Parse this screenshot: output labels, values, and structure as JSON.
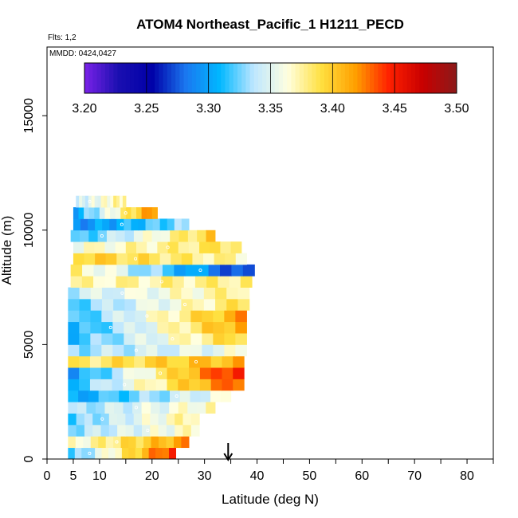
{
  "chart_data": {
    "type": "heatmap",
    "title": "ATOM4 Northeast_Pacific_1 H1211_PECD",
    "flights_label": "Flts: 1,2",
    "mmdd_label": "MMDD: 0424,0427",
    "xlabel": "Latitude (deg N)",
    "ylabel": "Altitude (m)",
    "xlim": [
      0,
      85
    ],
    "ylim": [
      0,
      18000
    ],
    "x_ticks": [
      0,
      5,
      10,
      20,
      30,
      40,
      50,
      60,
      70,
      80
    ],
    "x_minor_ticks": [
      15,
      25,
      35,
      45,
      55,
      65,
      75,
      85
    ],
    "y_ticks": [
      0,
      5000,
      10000,
      15000
    ],
    "colorbar": {
      "ticks": [
        "3.20",
        "3.25",
        "3.30",
        "3.35",
        "3.40",
        "3.45",
        "3.50"
      ],
      "range": [
        3.2,
        3.5
      ],
      "colors": [
        "#7b22e8",
        "#1a0fb0",
        "#0000a8",
        "#1a78f0",
        "#00b8ff",
        "#bde6ff",
        "#ffffe0",
        "#ffe040",
        "#ffa000",
        "#ff2000",
        "#c80000",
        "#8b1a1a"
      ]
    },
    "marker_latitude": 34.5,
    "bands": [
      {
        "alt0": 0,
        "alt1": 500,
        "lat0": 4,
        "lat1": 24.5,
        "v0": 3.31,
        "v1": 3.45
      },
      {
        "alt0": 500,
        "alt1": 1000,
        "lat0": 4,
        "lat1": 27,
        "v0": 3.36,
        "v1": 3.42
      },
      {
        "alt0": 1000,
        "alt1": 1500,
        "lat0": 4,
        "lat1": 29,
        "v0": 3.33,
        "v1": 3.37
      },
      {
        "alt0": 1500,
        "alt1": 2000,
        "lat0": 4,
        "lat1": 29,
        "v0": 3.32,
        "v1": 3.38
      },
      {
        "alt0": 2000,
        "alt1": 2500,
        "lat0": 4,
        "lat1": 32,
        "v0": 3.33,
        "v1": 3.37
      },
      {
        "alt0": 2500,
        "alt1": 3000,
        "lat0": 4,
        "lat1": 35,
        "v0": 3.3,
        "v1": 3.36
      },
      {
        "alt0": 3000,
        "alt1": 3500,
        "lat0": 4,
        "lat1": 37.5,
        "v0": 3.31,
        "v1": 3.44
      },
      {
        "alt0": 3500,
        "alt1": 4000,
        "lat0": 4,
        "lat1": 37.5,
        "v0": 3.29,
        "v1": 3.46
      },
      {
        "alt0": 4000,
        "alt1": 4500,
        "lat0": 4,
        "lat1": 37.5,
        "v0": 3.38,
        "v1": 3.41
      },
      {
        "alt0": 4500,
        "alt1": 5000,
        "lat0": 4,
        "lat1": 38,
        "v0": 3.33,
        "v1": 3.36
      },
      {
        "alt0": 5000,
        "alt1": 5500,
        "lat0": 4,
        "lat1": 38,
        "v0": 3.31,
        "v1": 3.4
      },
      {
        "alt0": 5500,
        "alt1": 6000,
        "lat0": 4,
        "lat1": 38,
        "v0": 3.3,
        "v1": 3.42
      },
      {
        "alt0": 6000,
        "alt1": 6500,
        "lat0": 4,
        "lat1": 38,
        "v0": 3.31,
        "v1": 3.42
      },
      {
        "alt0": 6500,
        "alt1": 7000,
        "lat0": 4,
        "lat1": 38.5,
        "v0": 3.32,
        "v1": 3.39
      },
      {
        "alt0": 7000,
        "alt1": 7500,
        "lat0": 4,
        "lat1": 38.5,
        "v0": 3.34,
        "v1": 3.38
      },
      {
        "alt0": 7500,
        "alt1": 8000,
        "lat0": 4.5,
        "lat1": 39,
        "v0": 3.37,
        "v1": 3.38
      },
      {
        "alt0": 8000,
        "alt1": 8500,
        "lat0": 4.5,
        "lat1": 39.5,
        "v0": 3.38,
        "v1": 3.26
      },
      {
        "alt0": 8500,
        "alt1": 9000,
        "lat0": 5,
        "lat1": 38,
        "v0": 3.4,
        "v1": 3.37
      },
      {
        "alt0": 9000,
        "alt1": 9500,
        "lat0": 5,
        "lat1": 37,
        "v0": 3.36,
        "v1": 3.39
      },
      {
        "alt0": 9500,
        "alt1": 10000,
        "lat0": 4.5,
        "lat1": 32,
        "v0": 3.31,
        "v1": 3.4
      },
      {
        "alt0": 10000,
        "alt1": 10500,
        "lat0": 5,
        "lat1": 27,
        "v0": 3.29,
        "v1": 3.33
      },
      {
        "alt0": 10500,
        "alt1": 11000,
        "lat0": 5,
        "lat1": 21,
        "v0": 3.3,
        "v1": 3.43
      },
      {
        "alt0": 11000,
        "alt1": 11500,
        "lat0": 5.5,
        "lat1": 15,
        "v0": 3.34,
        "v1": 3.38
      }
    ]
  }
}
